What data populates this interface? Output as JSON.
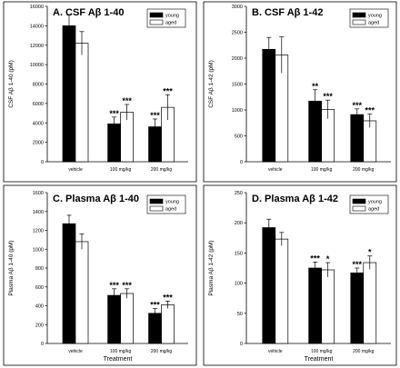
{
  "chart_data": [
    {
      "type": "bar",
      "panel_label": "A.",
      "title": "CSF Aβ 1-40",
      "ylabel": "CSF Aβ 1-40 (pM)",
      "xlabel": "",
      "categories": [
        "vehicle",
        "100 mg/kg",
        "200 mg/kg"
      ],
      "series": [
        {
          "name": "young",
          "values": [
            14000,
            3900,
            3600
          ],
          "errors": [
            1100,
            700,
            800
          ],
          "color": "#000000"
        },
        {
          "name": "aged",
          "values": [
            12200,
            5100,
            5600
          ],
          "errors": [
            1200,
            800,
            1300
          ],
          "color": "#ffffff"
        }
      ],
      "significance": [
        [
          "",
          "***",
          "***"
        ],
        [
          "",
          "***",
          "***"
        ]
      ],
      "ylim": [
        0,
        16000
      ],
      "yticks": [
        0,
        2000,
        4000,
        6000,
        8000,
        10000,
        12000,
        14000,
        16000
      ],
      "legend": "top-right"
    },
    {
      "type": "bar",
      "panel_label": "B.",
      "title": "CSF Aβ 1-42",
      "ylabel": "CSF Aβ 1-42 (pM)",
      "xlabel": "",
      "categories": [
        "vehicle",
        "100 mg/kg",
        "200 mg/kg"
      ],
      "series": [
        {
          "name": "young",
          "values": [
            2170,
            1170,
            910
          ],
          "errors": [
            230,
            220,
            110
          ],
          "color": "#000000"
        },
        {
          "name": "aged",
          "values": [
            2060,
            1010,
            790
          ],
          "errors": [
            350,
            180,
            130
          ],
          "color": "#ffffff"
        }
      ],
      "significance": [
        [
          "",
          "**",
          "***"
        ],
        [
          "",
          "***",
          "***"
        ]
      ],
      "ylim": [
        0,
        3000
      ],
      "yticks": [
        0,
        500,
        1000,
        1500,
        2000,
        2500,
        3000
      ],
      "legend": "top-right"
    },
    {
      "type": "bar",
      "panel_label": "C.",
      "title": "Plasma Aβ 1-40",
      "ylabel": "Plasma Aβ 1-40 (pM)",
      "xlabel": "Treatment",
      "categories": [
        "vehicle",
        "100 mg/kg",
        "200 mg/kg"
      ],
      "series": [
        {
          "name": "young",
          "values": [
            1270,
            510,
            320
          ],
          "errors": [
            90,
            70,
            50
          ],
          "color": "#000000"
        },
        {
          "name": "aged",
          "values": [
            1080,
            530,
            410
          ],
          "errors": [
            80,
            50,
            40
          ],
          "color": "#ffffff"
        }
      ],
      "significance": [
        [
          "",
          "***",
          "***"
        ],
        [
          "",
          "***",
          "***"
        ]
      ],
      "ylim": [
        0,
        1600
      ],
      "yticks": [
        0,
        200,
        400,
        600,
        800,
        1000,
        1200,
        1400,
        1600
      ],
      "legend": "top-right"
    },
    {
      "type": "bar",
      "panel_label": "D.",
      "title": "Plasma Aβ 1-42",
      "ylabel": "Plasma Aβ 1-42 (pM)",
      "xlabel": "Treatment",
      "categories": [
        "vehicle",
        "100 mg/kg",
        "200 mg/kg"
      ],
      "series": [
        {
          "name": "young",
          "values": [
            192,
            125,
            117
          ],
          "errors": [
            14,
            10,
            8
          ],
          "color": "#000000"
        },
        {
          "name": "aged",
          "values": [
            173,
            122,
            134
          ],
          "errors": [
            11,
            12,
            11
          ],
          "color": "#ffffff"
        }
      ],
      "significance": [
        [
          "",
          "***",
          "***"
        ],
        [
          "",
          "*",
          "*"
        ]
      ],
      "ylim": [
        0,
        250
      ],
      "yticks": [
        0,
        50,
        100,
        150,
        200,
        250
      ],
      "legend": "top-right"
    }
  ]
}
